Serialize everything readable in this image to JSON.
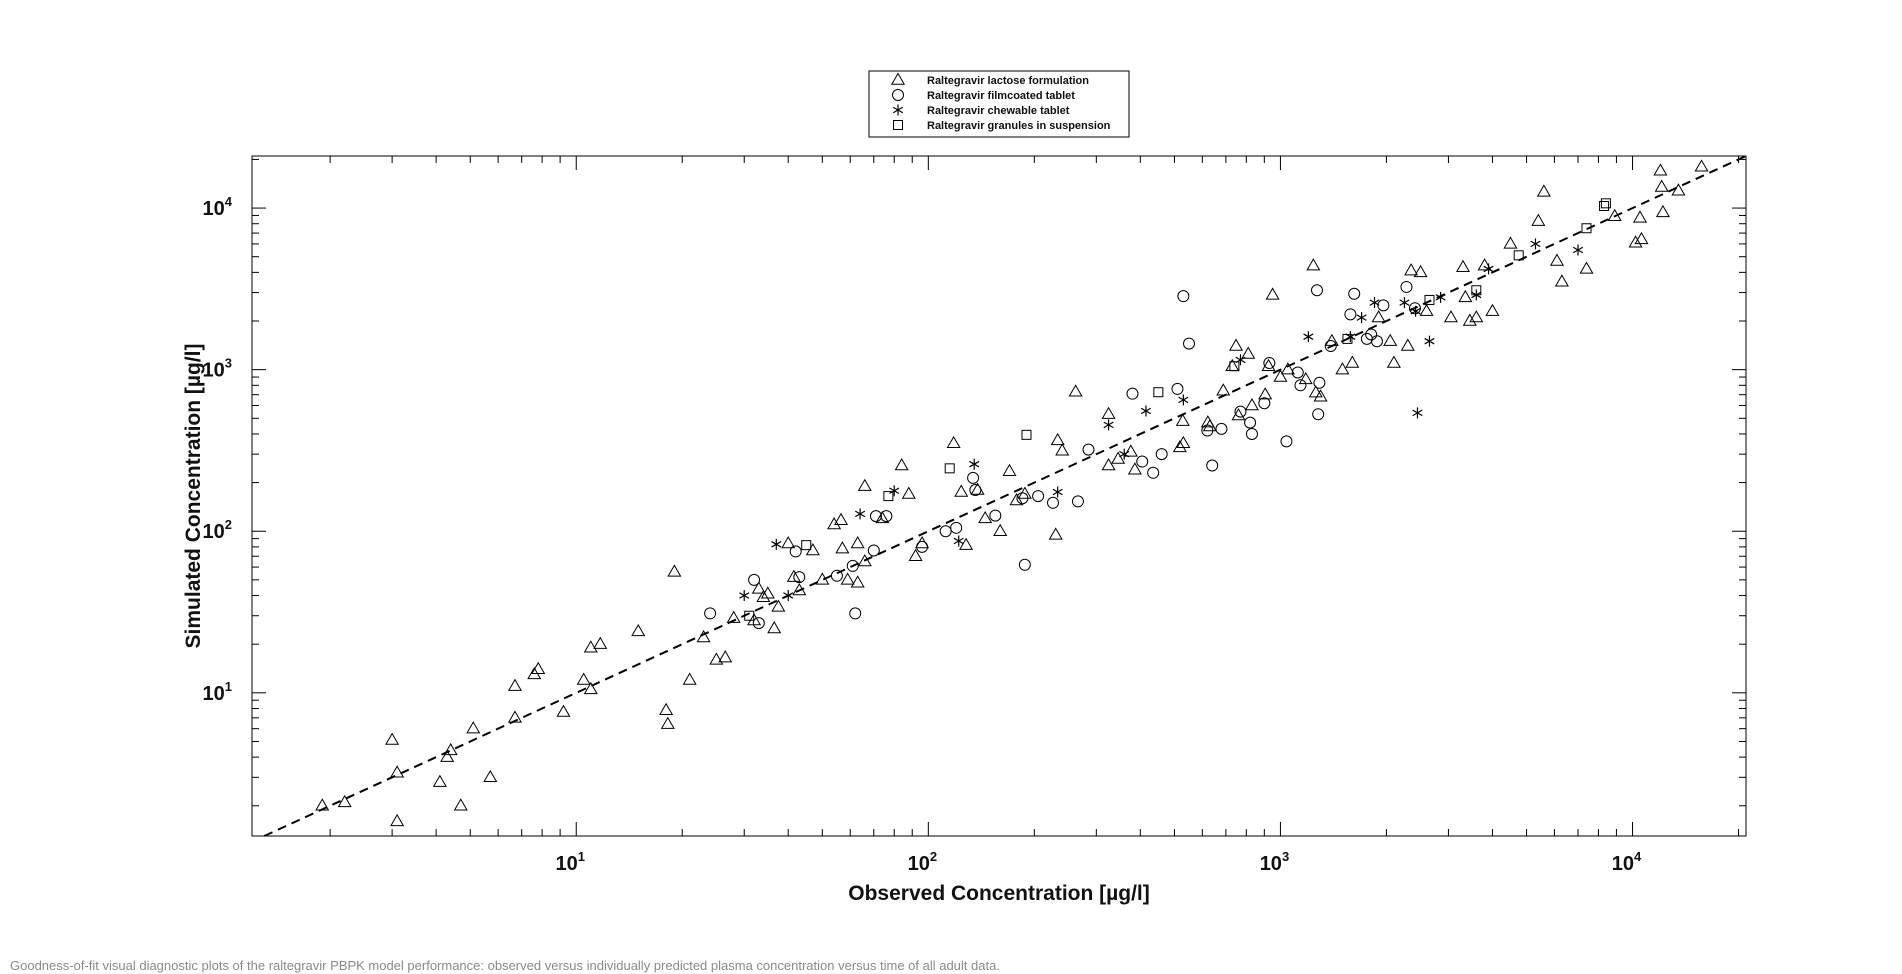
{
  "caption": "Goodness-of-fit visual diagnostic plots of the raltegravir PBPK model performance: observed versus individually predicted plasma concentration versus time of all adult data.",
  "chart_data": {
    "type": "scatter",
    "title": "",
    "xlabel": "Observed Concentration [µg/l]",
    "ylabel": "Simulated Concentration [µg/l]",
    "xscale": "log",
    "yscale": "log",
    "xlim": [
      1.2,
      21000
    ],
    "ylim": [
      1.3,
      21000
    ],
    "x_ticks": [
      {
        "base": "10",
        "exp": "1",
        "value": 10
      },
      {
        "base": "10",
        "exp": "2",
        "value": 100
      },
      {
        "base": "10",
        "exp": "3",
        "value": 1000
      },
      {
        "base": "10",
        "exp": "4",
        "value": 10000
      }
    ],
    "y_ticks": [
      {
        "base": "10",
        "exp": "1",
        "value": 10
      },
      {
        "base": "10",
        "exp": "2",
        "value": 100
      },
      {
        "base": "10",
        "exp": "3",
        "value": 1000
      },
      {
        "base": "10",
        "exp": "4",
        "value": 10000
      }
    ],
    "grid": false,
    "legend_position": "top-center",
    "identity_line": {
      "style": "dashed",
      "color": "#000000"
    },
    "series": [
      {
        "name": "Raltegravir lactose formulation",
        "marker": "triangle",
        "points": [
          [
            1.9,
            2.0
          ],
          [
            2.2,
            2.1
          ],
          [
            3.0,
            5.1
          ],
          [
            3.1,
            3.2
          ],
          [
            3.1,
            1.6
          ],
          [
            4.1,
            2.8
          ],
          [
            4.3,
            4.0
          ],
          [
            4.4,
            4.4
          ],
          [
            4.7,
            2.0
          ],
          [
            5.1,
            6.0
          ],
          [
            5.7,
            3.0
          ],
          [
            6.7,
            7.0
          ],
          [
            6.7,
            11
          ],
          [
            7.6,
            13
          ],
          [
            7.8,
            14
          ],
          [
            9.2,
            7.6
          ],
          [
            10.5,
            12
          ],
          [
            11.0,
            19
          ],
          [
            11.0,
            10.5
          ],
          [
            11.7,
            20
          ],
          [
            15,
            24
          ],
          [
            18,
            7.8
          ],
          [
            18.2,
            6.4
          ],
          [
            19,
            56
          ],
          [
            21,
            12
          ],
          [
            23,
            22
          ],
          [
            25,
            16
          ],
          [
            26.5,
            16.5
          ],
          [
            28,
            29
          ],
          [
            32,
            28
          ],
          [
            33,
            44
          ],
          [
            34,
            39
          ],
          [
            35,
            41
          ],
          [
            36.5,
            25
          ],
          [
            37.5,
            34
          ],
          [
            40,
            84
          ],
          [
            41.5,
            52
          ],
          [
            43,
            43
          ],
          [
            47,
            76
          ],
          [
            50,
            50
          ],
          [
            54,
            110
          ],
          [
            56.5,
            117
          ],
          [
            57,
            78
          ],
          [
            59,
            50
          ],
          [
            63,
            84
          ],
          [
            63,
            48
          ],
          [
            66,
            190
          ],
          [
            66,
            65
          ],
          [
            74,
            120
          ],
          [
            84,
            255
          ],
          [
            88,
            170
          ],
          [
            92,
            70
          ],
          [
            96,
            84
          ],
          [
            118,
            350
          ],
          [
            124,
            175
          ],
          [
            128,
            82
          ],
          [
            138,
            180
          ],
          [
            145,
            120
          ],
          [
            160,
            100
          ],
          [
            170,
            235
          ],
          [
            178,
            155
          ],
          [
            188,
            170
          ],
          [
            230,
            95
          ],
          [
            233,
            365
          ],
          [
            240,
            315
          ],
          [
            262,
            730
          ],
          [
            325,
            255
          ],
          [
            325,
            530
          ],
          [
            346,
            280
          ],
          [
            376,
            310
          ],
          [
            386,
            240
          ],
          [
            518,
            330
          ],
          [
            528,
            480
          ],
          [
            530,
            350
          ],
          [
            622,
            470
          ],
          [
            630,
            445
          ],
          [
            688,
            740
          ],
          [
            730,
            1050
          ],
          [
            748,
            1400
          ],
          [
            760,
            520
          ],
          [
            810,
            1250
          ],
          [
            830,
            600
          ],
          [
            905,
            700
          ],
          [
            925,
            1050
          ],
          [
            950,
            2900
          ],
          [
            1000,
            900
          ],
          [
            1050,
            1000
          ],
          [
            1180,
            870
          ],
          [
            1240,
            4400
          ],
          [
            1260,
            720
          ],
          [
            1300,
            680
          ],
          [
            1400,
            1500
          ],
          [
            1500,
            1000
          ],
          [
            1600,
            1100
          ],
          [
            1900,
            2100
          ],
          [
            2050,
            1500
          ],
          [
            2100,
            1100
          ],
          [
            2300,
            1400
          ],
          [
            2350,
            4100
          ],
          [
            2500,
            4000
          ],
          [
            2600,
            2300
          ],
          [
            3050,
            2100
          ],
          [
            3300,
            4300
          ],
          [
            3350,
            2800
          ],
          [
            3450,
            2000
          ],
          [
            3600,
            2100
          ],
          [
            3800,
            4400
          ],
          [
            4000,
            2300
          ],
          [
            4500,
            6000
          ],
          [
            5400,
            8300
          ],
          [
            5600,
            12600
          ],
          [
            6100,
            4700
          ],
          [
            6300,
            3500
          ],
          [
            7400,
            4200
          ],
          [
            8900,
            8900
          ],
          [
            10200,
            6100
          ],
          [
            10600,
            6400
          ],
          [
            10500,
            8700
          ],
          [
            12000,
            17000
          ],
          [
            12100,
            13500
          ],
          [
            12200,
            9400
          ],
          [
            13500,
            12800
          ],
          [
            15700,
            18000
          ]
        ]
      },
      {
        "name": "Raltegravir filmcoated tablet",
        "marker": "circle",
        "points": [
          [
            24,
            31
          ],
          [
            32,
            50
          ],
          [
            33,
            27
          ],
          [
            42,
            75
          ],
          [
            43,
            52
          ],
          [
            55,
            53
          ],
          [
            61,
            61
          ],
          [
            62,
            31
          ],
          [
            70,
            76
          ],
          [
            71,
            124
          ],
          [
            76,
            124
          ],
          [
            96,
            80
          ],
          [
            112,
            100
          ],
          [
            120,
            105
          ],
          [
            134,
            214
          ],
          [
            136,
            180
          ],
          [
            155,
            125
          ],
          [
            185,
            160
          ],
          [
            188,
            62
          ],
          [
            205,
            165
          ],
          [
            226,
            150
          ],
          [
            266,
            153
          ],
          [
            285,
            320
          ],
          [
            380,
            710
          ],
          [
            405,
            270
          ],
          [
            435,
            230
          ],
          [
            460,
            300
          ],
          [
            510,
            760
          ],
          [
            530,
            2850
          ],
          [
            550,
            1450
          ],
          [
            620,
            420
          ],
          [
            640,
            255
          ],
          [
            680,
            430
          ],
          [
            770,
            550
          ],
          [
            820,
            470
          ],
          [
            830,
            400
          ],
          [
            900,
            620
          ],
          [
            930,
            1100
          ],
          [
            1040,
            360
          ],
          [
            1120,
            960
          ],
          [
            1140,
            800
          ],
          [
            1270,
            3100
          ],
          [
            1280,
            530
          ],
          [
            1290,
            830
          ],
          [
            1390,
            1400
          ],
          [
            1580,
            2200
          ],
          [
            1620,
            2950
          ],
          [
            1760,
            1550
          ],
          [
            1810,
            1650
          ],
          [
            1880,
            1500
          ],
          [
            1960,
            2500
          ],
          [
            2280,
            3250
          ],
          [
            2410,
            2400
          ]
        ]
      },
      {
        "name": "Raltegravir chewable tablet",
        "marker": "star",
        "points": [
          [
            30,
            40
          ],
          [
            37,
            83
          ],
          [
            40,
            40
          ],
          [
            64,
            128
          ],
          [
            80,
            178
          ],
          [
            122,
            87
          ],
          [
            135,
            260
          ],
          [
            233,
            175
          ],
          [
            325,
            455
          ],
          [
            360,
            300
          ],
          [
            415,
            555
          ],
          [
            530,
            650
          ],
          [
            770,
            1150
          ],
          [
            1200,
            1600
          ],
          [
            1580,
            1600
          ],
          [
            1700,
            2100
          ],
          [
            1850,
            2600
          ],
          [
            2250,
            2600
          ],
          [
            2420,
            2300
          ],
          [
            2450,
            540
          ],
          [
            2650,
            1500
          ],
          [
            2850,
            2800
          ],
          [
            3600,
            2900
          ],
          [
            3900,
            4200
          ],
          [
            5300,
            6000
          ],
          [
            7000,
            5500
          ]
        ]
      },
      {
        "name": "Raltegravir granules in suspension",
        "marker": "square",
        "points": [
          [
            31,
            30
          ],
          [
            45,
            82
          ],
          [
            77,
            165
          ],
          [
            115,
            245
          ],
          [
            190,
            395
          ],
          [
            450,
            725
          ],
          [
            740,
            1050
          ],
          [
            1550,
            1550
          ],
          [
            2650,
            2700
          ],
          [
            3600,
            3100
          ],
          [
            4750,
            5100
          ],
          [
            7400,
            7500
          ],
          [
            8300,
            10300
          ],
          [
            8400,
            10700
          ]
        ]
      }
    ]
  }
}
